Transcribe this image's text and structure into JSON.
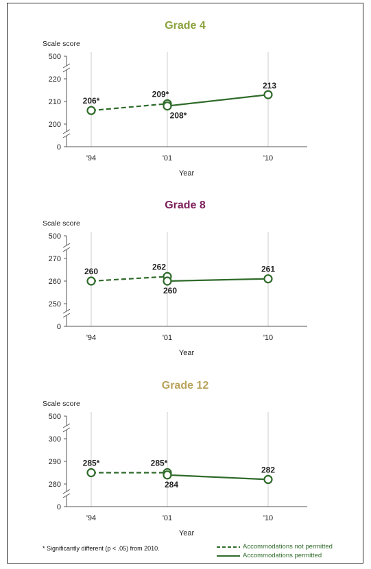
{
  "colors": {
    "line": "#2f6b2a",
    "grade4_title": "#8aa23a",
    "grade8_title": "#7d1f5c",
    "grade12_title": "#b9a35a",
    "axis": "#555555",
    "gridline": "#cccccc"
  },
  "chart_data": [
    {
      "type": "line",
      "title": "Grade 4",
      "ylabel": "Scale score",
      "xlabel": "Year",
      "y_axis_break": true,
      "y_ticks": [
        "0",
        "200",
        "210",
        "220",
        "500"
      ],
      "x_ticks": [
        "'94",
        "'01",
        "'10"
      ],
      "ylim": [
        197,
        223
      ],
      "grid": "vertical",
      "series": [
        {
          "name": "Accommodations not permitted",
          "style": "dashed",
          "points": [
            {
              "x": "'94",
              "y": 206,
              "label": "206*"
            },
            {
              "x": "'01",
              "y": 209,
              "label": "209*"
            }
          ]
        },
        {
          "name": "Accommodations permitted",
          "style": "solid",
          "points": [
            {
              "x": "'01",
              "y": 208,
              "label": "208*"
            },
            {
              "x": "'10",
              "y": 213,
              "label": "213"
            }
          ]
        }
      ]
    },
    {
      "type": "line",
      "title": "Grade 8",
      "ylabel": "Scale score",
      "xlabel": "Year",
      "y_axis_break": true,
      "y_ticks": [
        "0",
        "250",
        "260",
        "270",
        "500"
      ],
      "x_ticks": [
        "'94",
        "'01",
        "'10"
      ],
      "ylim": [
        247,
        273
      ],
      "grid": "vertical",
      "series": [
        {
          "name": "Accommodations not permitted",
          "style": "dashed",
          "points": [
            {
              "x": "'94",
              "y": 260,
              "label": "260"
            },
            {
              "x": "'01",
              "y": 262,
              "label": "262"
            }
          ]
        },
        {
          "name": "Accommodations permitted",
          "style": "solid",
          "points": [
            {
              "x": "'01",
              "y": 260,
              "label": "260"
            },
            {
              "x": "'10",
              "y": 261,
              "label": "261"
            }
          ]
        }
      ]
    },
    {
      "type": "line",
      "title": "Grade 12",
      "ylabel": "Scale score",
      "xlabel": "Year",
      "y_axis_break": true,
      "y_ticks": [
        "0",
        "280",
        "290",
        "300",
        "500"
      ],
      "x_ticks": [
        "'94",
        "'01",
        "'10"
      ],
      "ylim": [
        277,
        303
      ],
      "grid": "vertical",
      "series": [
        {
          "name": "Accommodations not permitted",
          "style": "dashed",
          "points": [
            {
              "x": "'94",
              "y": 285,
              "label": "285*"
            },
            {
              "x": "'01",
              "y": 285,
              "label": "285*"
            }
          ]
        },
        {
          "name": "Accommodations permitted",
          "style": "solid",
          "points": [
            {
              "x": "'01",
              "y": 284,
              "label": "284"
            },
            {
              "x": "'10",
              "y": 282,
              "label": "282"
            }
          ]
        }
      ]
    }
  ],
  "footnote": "* Significantly different (p < .05) from 2010.",
  "legend": {
    "dashed": "Accommodations not permitted",
    "solid": "Accommodations permitted"
  }
}
